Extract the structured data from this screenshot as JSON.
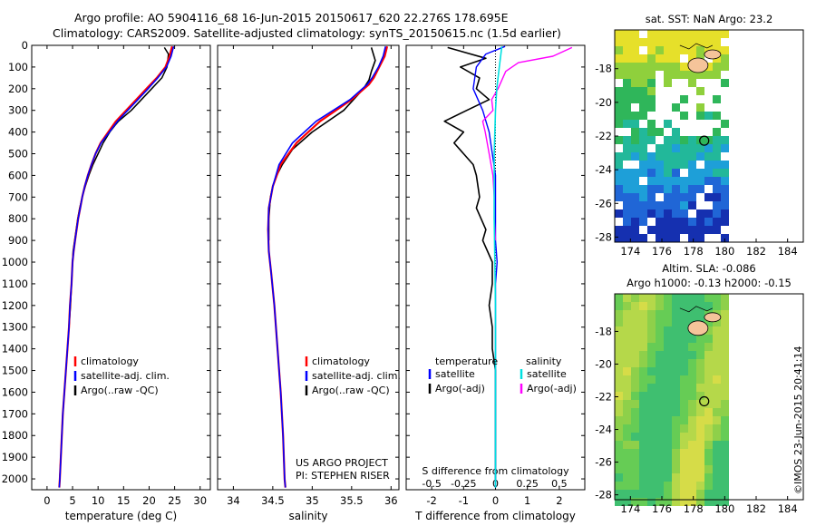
{
  "header": {
    "line1": "Argo profile: AO 5904116_68 16-Jun-2015 20150617_620 22.276S 178.695E",
    "line2": "Climatology: CARS2009. Satellite-adjusted climatology: synTS_20150615.nc (1.5d earlier)"
  },
  "footer": {
    "stamp": "©IMOS 23-Jun-2015 20:41:14"
  },
  "colors": {
    "clim": "#ff0000",
    "sat": "#0000ff",
    "argo": "#000000",
    "salSat": "#00e0e0",
    "salArgo": "#ff00ff"
  },
  "depth_ticks": [
    "0",
    "100",
    "200",
    "300",
    "400",
    "500",
    "600",
    "700",
    "800",
    "900",
    "1000",
    "1100",
    "1200",
    "1300",
    "1400",
    "1500",
    "1600",
    "1700",
    "1800",
    "1900",
    "2000"
  ],
  "chart_data": [
    {
      "type": "line",
      "xlabel": "temperature (deg C)",
      "xticks": [
        "0",
        "5",
        "10",
        "15",
        "20",
        "25",
        "30"
      ],
      "xlim": [
        -3,
        32
      ],
      "ylim": [
        2050,
        0
      ],
      "legend": [
        "climatology",
        "satellite-adj. clim.",
        "Argo(..raw -QC)"
      ],
      "series": [
        {
          "name": "climatology",
          "points": [
            [
              24.5,
              5
            ],
            [
              24.0,
              50
            ],
            [
              23.2,
              100
            ],
            [
              21.5,
              150
            ],
            [
              19.5,
              200
            ],
            [
              17.5,
              250
            ],
            [
              15.5,
              300
            ],
            [
              13.5,
              350
            ],
            [
              12.0,
              400
            ],
            [
              10.5,
              450
            ],
            [
              9.5,
              500
            ],
            [
              8.7,
              550
            ],
            [
              8.0,
              600
            ],
            [
              7.4,
              650
            ],
            [
              6.9,
              700
            ],
            [
              6.5,
              750
            ],
            [
              6.1,
              800
            ],
            [
              5.8,
              850
            ],
            [
              5.5,
              900
            ],
            [
              5.2,
              950
            ],
            [
              5.0,
              1000
            ],
            [
              4.8,
              1100
            ],
            [
              4.5,
              1200
            ],
            [
              4.3,
              1300
            ],
            [
              4.0,
              1400
            ],
            [
              3.7,
              1500
            ],
            [
              3.4,
              1600
            ],
            [
              3.1,
              1700
            ],
            [
              2.9,
              1800
            ],
            [
              2.7,
              1900
            ],
            [
              2.5,
              2000
            ],
            [
              2.4,
              2040
            ]
          ]
        },
        {
          "name": "satellite-adj. clim.",
          "points": [
            [
              24.8,
              5
            ],
            [
              24.3,
              50
            ],
            [
              23.4,
              100
            ],
            [
              21.7,
              150
            ],
            [
              19.8,
              200
            ],
            [
              17.8,
              250
            ],
            [
              15.8,
              300
            ],
            [
              13.8,
              350
            ],
            [
              12.2,
              400
            ],
            [
              10.6,
              450
            ],
            [
              9.5,
              500
            ],
            [
              8.7,
              550
            ],
            [
              8.0,
              600
            ],
            [
              7.4,
              650
            ],
            [
              6.9,
              700
            ],
            [
              6.5,
              750
            ],
            [
              6.1,
              800
            ],
            [
              5.8,
              850
            ],
            [
              5.5,
              900
            ],
            [
              5.2,
              950
            ],
            [
              5.0,
              1000
            ],
            [
              4.8,
              1100
            ],
            [
              4.5,
              1200
            ],
            [
              4.3,
              1300
            ],
            [
              4.0,
              1400
            ],
            [
              3.7,
              1500
            ],
            [
              3.4,
              1600
            ],
            [
              3.1,
              1700
            ],
            [
              2.9,
              1800
            ],
            [
              2.7,
              1900
            ],
            [
              2.5,
              2000
            ],
            [
              2.4,
              2040
            ]
          ]
        },
        {
          "name": "Argo(..raw -QC)",
          "points": [
            [
              23.0,
              10
            ],
            [
              23.8,
              40
            ],
            [
              23.5,
              100
            ],
            [
              22.5,
              150
            ],
            [
              20.5,
              200
            ],
            [
              18.5,
              250
            ],
            [
              16.5,
              300
            ],
            [
              14.0,
              350
            ],
            [
              13.3,
              370
            ],
            [
              12.3,
              400
            ],
            [
              11.0,
              450
            ],
            [
              10.0,
              500
            ],
            [
              9.0,
              550
            ],
            [
              8.2,
              600
            ],
            [
              7.5,
              650
            ],
            [
              6.9,
              700
            ],
            [
              6.4,
              750
            ],
            [
              6.0,
              800
            ],
            [
              5.7,
              850
            ],
            [
              5.4,
              900
            ],
            [
              5.1,
              950
            ],
            [
              5.0,
              1000
            ],
            [
              4.8,
              1100
            ],
            [
              4.6,
              1200
            ],
            [
              4.3,
              1300
            ],
            [
              4.0,
              1400
            ],
            [
              3.7,
              1500
            ],
            [
              3.4,
              1600
            ],
            [
              3.1,
              1700
            ],
            [
              2.9,
              1800
            ],
            [
              2.7,
              1900
            ],
            [
              2.5,
              1990
            ]
          ]
        }
      ]
    },
    {
      "type": "line",
      "xlabel": "salinity",
      "xticks": [
        "34",
        "34.5",
        "35",
        "35.5",
        "36"
      ],
      "xlim": [
        33.8,
        36.1
      ],
      "ylim": [
        2050,
        0
      ],
      "legend": [
        "climatology",
        "satellite-adj. clim.",
        "Argo(..raw -QC)"
      ],
      "annotations": [
        "US ARGO PROJECT",
        "PI: STEPHEN RISER"
      ],
      "series": [
        {
          "name": "climatology",
          "points": [
            [
              35.95,
              5
            ],
            [
              35.92,
              50
            ],
            [
              35.85,
              100
            ],
            [
              35.78,
              150
            ],
            [
              35.72,
              180
            ],
            [
              35.5,
              250
            ],
            [
              35.1,
              350
            ],
            [
              34.8,
              450
            ],
            [
              34.6,
              550
            ],
            [
              34.5,
              650
            ],
            [
              34.45,
              750
            ],
            [
              34.44,
              850
            ],
            [
              34.45,
              950
            ],
            [
              34.48,
              1050
            ],
            [
              34.52,
              1200
            ],
            [
              34.56,
              1400
            ],
            [
              34.6,
              1600
            ],
            [
              34.63,
              1800
            ],
            [
              34.65,
              2000
            ],
            [
              34.66,
              2040
            ]
          ]
        },
        {
          "name": "satellite-adj. clim.",
          "points": [
            [
              35.93,
              5
            ],
            [
              35.9,
              50
            ],
            [
              35.84,
              100
            ],
            [
              35.76,
              150
            ],
            [
              35.7,
              180
            ],
            [
              35.48,
              250
            ],
            [
              35.05,
              350
            ],
            [
              34.75,
              450
            ],
            [
              34.58,
              550
            ],
            [
              34.5,
              650
            ],
            [
              34.45,
              750
            ],
            [
              34.44,
              850
            ],
            [
              34.45,
              950
            ],
            [
              34.48,
              1050
            ],
            [
              34.52,
              1200
            ],
            [
              34.56,
              1400
            ],
            [
              34.6,
              1600
            ],
            [
              34.63,
              1800
            ],
            [
              34.65,
              2000
            ],
            [
              34.66,
              2040
            ]
          ]
        },
        {
          "name": "Argo(..raw -QC)",
          "points": [
            [
              35.75,
              10
            ],
            [
              35.8,
              70
            ],
            [
              35.75,
              120
            ],
            [
              35.72,
              160
            ],
            [
              35.65,
              200
            ],
            [
              35.4,
              300
            ],
            [
              35.0,
              400
            ],
            [
              34.75,
              480
            ],
            [
              34.62,
              550
            ],
            [
              34.55,
              600
            ],
            [
              34.5,
              650
            ],
            [
              34.47,
              700
            ],
            [
              34.45,
              800
            ],
            [
              34.45,
              900
            ]
          ]
        }
      ]
    },
    {
      "type": "line",
      "xlabel": "T difference from climatology",
      "xticks": [
        "-2",
        "-1",
        "0",
        "1",
        "2"
      ],
      "xlim": [
        -2.8,
        2.8
      ],
      "top_xlabel": "S difference from climatology",
      "top_xticks": [
        "-0.5",
        "-0.25",
        "0",
        "0.25",
        "0.5"
      ],
      "top_xlim": [
        -0.7,
        0.7
      ],
      "ylim": [
        2050,
        0
      ],
      "legend_t": [
        "temperature",
        "satellite",
        "Argo(-adj)"
      ],
      "legend_s": [
        "salinity",
        "satellite",
        "Argo(-adj)"
      ],
      "series": [
        {
          "name": "temperature satellite",
          "points": [
            [
              0.3,
              5
            ],
            [
              -0.3,
              40
            ],
            [
              -0.6,
              100
            ],
            [
              -0.7,
              200
            ],
            [
              -0.4,
              300
            ],
            [
              -0.2,
              400
            ],
            [
              -0.1,
              500
            ],
            [
              0,
              600
            ],
            [
              0,
              700
            ],
            [
              0,
              800
            ],
            [
              0,
              900
            ],
            [
              0.05,
              1000
            ],
            [
              0,
              1100
            ],
            [
              0,
              1200
            ],
            [
              0,
              1300
            ],
            [
              0,
              1400
            ],
            [
              0,
              2040
            ]
          ]
        },
        {
          "name": "temperature Argo(-adj)",
          "points": [
            [
              -1.5,
              10
            ],
            [
              -0.3,
              60
            ],
            [
              -1.1,
              100
            ],
            [
              -0.5,
              150
            ],
            [
              -0.6,
              200
            ],
            [
              -0.2,
              250
            ],
            [
              -0.9,
              300
            ],
            [
              -1.6,
              350
            ],
            [
              -1.0,
              400
            ],
            [
              -1.3,
              450
            ],
            [
              -1.0,
              500
            ],
            [
              -0.7,
              550
            ],
            [
              -0.6,
              600
            ],
            [
              -0.5,
              700
            ],
            [
              -0.6,
              750
            ],
            [
              -0.3,
              850
            ],
            [
              -0.4,
              900
            ],
            [
              -0.1,
              1000
            ],
            [
              -0.1,
              1100
            ],
            [
              -0.2,
              1200
            ],
            [
              -0.1,
              1300
            ],
            [
              -0.1,
              1400
            ],
            [
              0,
              1500
            ],
            [
              0,
              1600
            ],
            [
              0,
              1700
            ],
            [
              0,
              1800
            ],
            [
              0,
              1900
            ],
            [
              0,
              2000
            ]
          ]
        },
        {
          "name": "salinity satellite",
          "points": [
            [
              0.05,
              5
            ],
            [
              0.03,
              100
            ],
            [
              0.01,
              200
            ],
            [
              0,
              300
            ],
            [
              -0.01,
              500
            ],
            [
              -0.01,
              800
            ],
            [
              0,
              1200
            ],
            [
              0,
              2040
            ]
          ]
        },
        {
          "name": "salinity Argo(-adj)",
          "points": [
            [
              0.6,
              10
            ],
            [
              0.45,
              50
            ],
            [
              0.18,
              80
            ],
            [
              0.08,
              120
            ],
            [
              0.02,
              200
            ],
            [
              -0.03,
              250
            ],
            [
              -0.02,
              300
            ],
            [
              -0.1,
              350
            ],
            [
              -0.08,
              400
            ],
            [
              -0.05,
              500
            ],
            [
              -0.02,
              600
            ],
            [
              -0.01,
              700
            ],
            [
              -0.01,
              800
            ],
            [
              0,
              900
            ]
          ]
        }
      ]
    }
  ],
  "maps": [
    {
      "title": "sat. SST: NaN Argo: 23.2",
      "xticks": [
        "174",
        "176",
        "178",
        "180",
        "182",
        "184"
      ],
      "yticks": [
        "-18",
        "-20",
        "-22",
        "-24",
        "-26",
        "-28"
      ],
      "xlim": [
        173,
        185
      ],
      "ylim": [
        -28.3,
        -15.7
      ],
      "argo_position": [
        178.695,
        -22.276
      ]
    },
    {
      "title": "Altim. SLA: -0.086",
      "subtitle": "Argo h1000: -0.13 h2000: -0.15",
      "xticks": [
        "174",
        "176",
        "178",
        "180",
        "182",
        "184"
      ],
      "yticks": [
        "-18",
        "-20",
        "-22",
        "-24",
        "-26",
        "-28"
      ],
      "xlim": [
        173,
        185
      ],
      "ylim": [
        -28.3,
        -15.7
      ],
      "argo_position": [
        178.695,
        -22.276
      ]
    }
  ]
}
